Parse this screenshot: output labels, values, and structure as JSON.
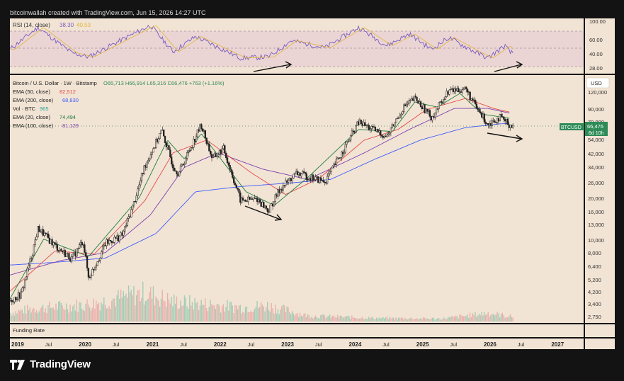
{
  "header": {
    "credit": "bitcoinwallah created with TradingView.com, Jun 15, 2026 14:27 UTC"
  },
  "rsi_panel": {
    "label": "RSI (14, close)",
    "value1": "38.30",
    "value2": "40.53",
    "ticks": [
      "100.00",
      "60.00",
      "40.00",
      "28.00"
    ]
  },
  "legend": {
    "title": "Bitcoin / U.S. Dollar · 1W · Bitstamp",
    "ohlc": "O65,713  H66,914  L65,316  C66,476  +763 (+1.16%)",
    "rows": [
      {
        "label": "EMA (50, close)",
        "value": "82,512",
        "color": "#e34949"
      },
      {
        "label": "EMA (200, close)",
        "value": "68,830",
        "color": "#3d5afe"
      },
      {
        "label": "Vol · BTC",
        "value": "965",
        "color": "#26a69a"
      },
      {
        "label": "EMA (20, close)",
        "value": "74,494",
        "color": "#1e7d3c"
      },
      {
        "label": "EMA (100, close)",
        "value": "81,129",
        "color": "#7b3fb0"
      }
    ]
  },
  "price_axis": {
    "currency": "USD",
    "ticks": [
      "120,000",
      "90,000",
      "70,000",
      "54,000",
      "42,000",
      "34,000",
      "26,000",
      "20,000",
      "16,000",
      "13,000",
      "10,000",
      "8,000",
      "6,400",
      "5,200",
      "4,200",
      "3,400",
      "2,750"
    ]
  },
  "price_tag": {
    "symbol": "BTCUSD",
    "price": "66,476",
    "countdown": "6d 10h"
  },
  "funding_label": "Funding Rate",
  "time_axis": [
    "2019",
    "Jul",
    "2020",
    "Jul",
    "2021",
    "Jul",
    "2022",
    "Jul",
    "2023",
    "Jul",
    "2024",
    "Jul",
    "2025",
    "Jul",
    "2026",
    "Jul",
    "2027"
  ],
  "brand": "TradingView",
  "colors": {
    "background": "#f2e4d4",
    "up": "#2e8b57",
    "down": "#d23b3b",
    "rsi_line": "#7a5cc0",
    "rsi_band": "#e7cfd4",
    "frame": "#131313"
  },
  "chart_data": {
    "type": "candlestick",
    "title": "Bitcoin / U.S. Dollar · 1W · Bitstamp",
    "xlabel": "",
    "ylabel": "USD",
    "yscale": "log",
    "ylim": [
      2600,
      130000
    ],
    "xlim": [
      "2019-01",
      "2027-06"
    ],
    "price_path": [
      [
        "2019-01",
        3600
      ],
      [
        "2019-03",
        4000
      ],
      [
        "2019-05",
        8000
      ],
      [
        "2019-06",
        12000
      ],
      [
        "2019-09",
        9000
      ],
      [
        "2019-12",
        7200
      ],
      [
        "2020-02",
        9800
      ],
      [
        "2020-03",
        5200
      ],
      [
        "2020-06",
        9300
      ],
      [
        "2020-09",
        10700
      ],
      [
        "2020-11",
        18000
      ],
      [
        "2021-01",
        34000
      ],
      [
        "2021-04",
        61000
      ],
      [
        "2021-06",
        34000
      ],
      [
        "2021-07",
        30000
      ],
      [
        "2021-11",
        67000
      ],
      [
        "2022-01",
        38000
      ],
      [
        "2022-03",
        45000
      ],
      [
        "2022-06",
        19000
      ],
      [
        "2022-09",
        19500
      ],
      [
        "2022-11",
        16000
      ],
      [
        "2023-01",
        23000
      ],
      [
        "2023-04",
        30000
      ],
      [
        "2023-09",
        26000
      ],
      [
        "2023-12",
        42000
      ],
      [
        "2024-03",
        70000
      ],
      [
        "2024-08",
        55000
      ],
      [
        "2024-11",
        90000
      ],
      [
        "2025-01",
        104000
      ],
      [
        "2025-04",
        76000
      ],
      [
        "2025-07",
        118000
      ],
      [
        "2025-10",
        122000
      ],
      [
        "2025-12",
        88000
      ],
      [
        "2026-02",
        68000
      ],
      [
        "2026-04",
        76000
      ],
      [
        "2026-06",
        66476
      ]
    ],
    "ema20_path": [
      [
        "2019-01",
        3700
      ],
      [
        "2019-07",
        10000
      ],
      [
        "2020-03",
        7500
      ],
      [
        "2020-12",
        20000
      ],
      [
        "2021-05",
        52000
      ],
      [
        "2021-08",
        38000
      ],
      [
        "2021-11",
        58000
      ],
      [
        "2022-07",
        22000
      ],
      [
        "2022-12",
        17500
      ],
      [
        "2023-06",
        28000
      ],
      [
        "2024-03",
        62000
      ],
      [
        "2024-09",
        60000
      ],
      [
        "2025-01",
        98000
      ],
      [
        "2025-05",
        90000
      ],
      [
        "2025-09",
        113000
      ],
      [
        "2026-01",
        80000
      ],
      [
        "2026-06",
        74494
      ]
    ],
    "ema50_path": [
      [
        "2019-01",
        4200
      ],
      [
        "2019-09",
        8200
      ],
      [
        "2020-04",
        7800
      ],
      [
        "2021-01",
        19000
      ],
      [
        "2021-06",
        42000
      ],
      [
        "2021-12",
        52000
      ],
      [
        "2022-08",
        30000
      ],
      [
        "2023-02",
        21000
      ],
      [
        "2023-08",
        27500
      ],
      [
        "2024-04",
        52000
      ],
      [
        "2024-10",
        62000
      ],
      [
        "2025-03",
        86000
      ],
      [
        "2025-10",
        104000
      ],
      [
        "2026-03",
        88000
      ],
      [
        "2026-06",
        82512
      ]
    ],
    "ema100_path": [
      [
        "2019-01",
        5500
      ],
      [
        "2019-10",
        7000
      ],
      [
        "2020-06",
        8000
      ],
      [
        "2021-02",
        15000
      ],
      [
        "2021-08",
        33000
      ],
      [
        "2022-02",
        42000
      ],
      [
        "2022-10",
        32000
      ],
      [
        "2023-06",
        27000
      ],
      [
        "2024-04",
        42000
      ],
      [
        "2024-12",
        62000
      ],
      [
        "2025-08",
        88000
      ],
      [
        "2026-02",
        88000
      ],
      [
        "2026-06",
        81129
      ]
    ],
    "ema200_path": [
      [
        "2019-01",
        6500
      ],
      [
        "2019-09",
        6800
      ],
      [
        "2020-06",
        7300
      ],
      [
        "2021-03",
        11000
      ],
      [
        "2021-10",
        22000
      ],
      [
        "2022-06",
        24000
      ],
      [
        "2023-03",
        25500
      ],
      [
        "2023-10",
        27000
      ],
      [
        "2024-06",
        38000
      ],
      [
        "2025-02",
        52000
      ],
      [
        "2025-10",
        64000
      ],
      [
        "2026-04",
        68000
      ],
      [
        "2026-06",
        68830
      ]
    ],
    "rsi_path": [
      [
        "2019-01",
        45
      ],
      [
        "2019-06",
        88
      ],
      [
        "2019-12",
        38
      ],
      [
        "2020-03",
        30
      ],
      [
        "2020-10",
        70
      ],
      [
        "2021-02",
        92
      ],
      [
        "2021-06",
        40
      ],
      [
        "2021-10",
        70
      ],
      [
        "2022-06",
        28
      ],
      [
        "2022-11",
        30
      ],
      [
        "2023-03",
        62
      ],
      [
        "2023-09",
        48
      ],
      [
        "2024-03",
        88
      ],
      [
        "2024-08",
        52
      ],
      [
        "2024-12",
        75
      ],
      [
        "2025-04",
        45
      ],
      [
        "2025-07",
        68
      ],
      [
        "2025-12",
        38
      ],
      [
        "2026-02",
        28
      ],
      [
        "2026-05",
        52
      ],
      [
        "2026-06",
        38.3
      ]
    ],
    "volume_relative_path": [
      [
        "2019-01",
        0.3
      ],
      [
        "2019-05",
        0.45
      ],
      [
        "2020-03",
        0.6
      ],
      [
        "2021-01",
        1.0
      ],
      [
        "2021-06",
        0.7
      ],
      [
        "2022-06",
        0.5
      ],
      [
        "2022-11",
        0.55
      ],
      [
        "2023-06",
        0.2
      ],
      [
        "2024-06",
        0.12
      ],
      [
        "2025-06",
        0.1
      ],
      [
        "2026-02",
        0.3
      ],
      [
        "2026-06",
        0.18
      ]
    ]
  }
}
